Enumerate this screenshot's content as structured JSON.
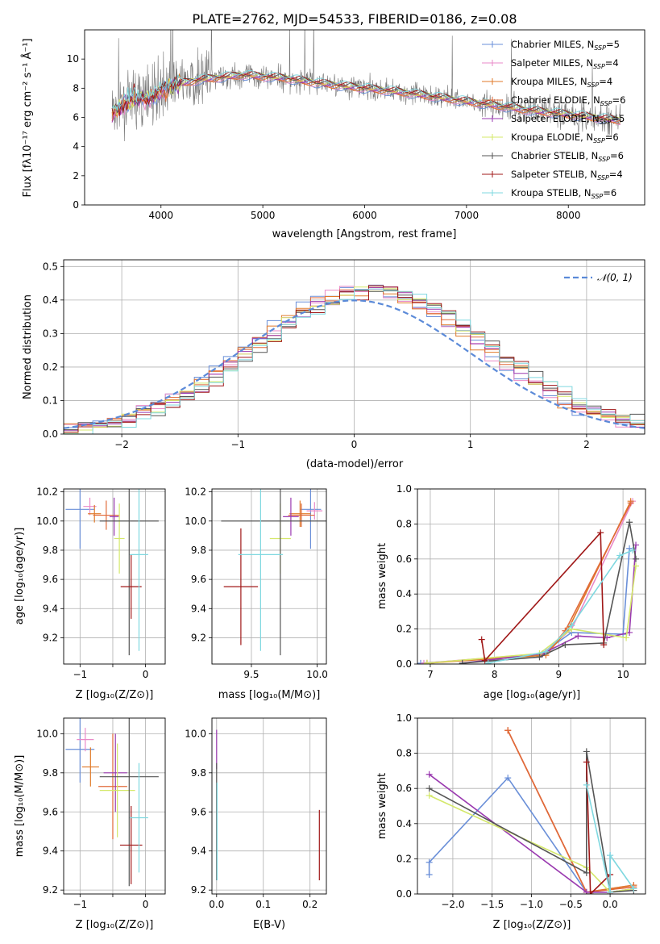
{
  "colors": {
    "chabrier_miles": "#6a8fd8",
    "salpeter_miles": "#e98ac8",
    "kroupa_miles": "#e07a2a",
    "chabrier_elodie": "#e06a3a",
    "salpeter_elodie": "#9a3ab0",
    "kroupa_elodie": "#d4e86a",
    "chabrier_stelib": "#555555",
    "salpeter_stelib": "#a01818",
    "kroupa_stelib": "#7fd8e0",
    "normal_curve": "#5b8ad8"
  },
  "chart_data": [
    {
      "id": "spectrum",
      "type": "line",
      "title": "PLATE=2762, MJD=54533, FIBERID=0186, z=0.08",
      "xlabel": "wavelength [Angstrom, rest frame]",
      "ylabel": "Flux [fλ10⁻¹⁷ erg cm⁻² s⁻¹ Å⁻¹]",
      "xlim": [
        3250,
        8750
      ],
      "ylim": [
        0,
        12
      ],
      "xticks": [
        4000,
        5000,
        6000,
        7000,
        8000
      ],
      "yticks": [
        0,
        2,
        4,
        6,
        8,
        10
      ],
      "legend": "top-right",
      "series": [
        {
          "name": "Chabrier MILES, N_SSP=5",
          "key": "chabrier_miles"
        },
        {
          "name": "Salpeter MILES, N_SSP=4",
          "key": "salpeter_miles"
        },
        {
          "name": "Kroupa MILES, N_SSP=4",
          "key": "kroupa_miles"
        },
        {
          "name": "Chabrier ELODIE, N_SSP=6",
          "key": "chabrier_elodie"
        },
        {
          "name": "Salpeter ELODIE, N_SSP=5",
          "key": "salpeter_elodie"
        },
        {
          "name": "Kroupa ELODIE, N_SSP=6",
          "key": "kroupa_elodie"
        },
        {
          "name": "Chabrier STELIB, N_SSP=6",
          "key": "chabrier_stelib"
        },
        {
          "name": "Salpeter STELIB, N_SSP=4",
          "key": "salpeter_stelib"
        },
        {
          "name": "Kroupa STELIB, N_SSP=6",
          "key": "kroupa_stelib"
        }
      ],
      "continuum": [
        [
          3500,
          6.2
        ],
        [
          3700,
          7.2
        ],
        [
          3900,
          7.4
        ],
        [
          4100,
          8.2
        ],
        [
          4400,
          8.6
        ],
        [
          4800,
          8.9
        ],
        [
          5200,
          8.7
        ],
        [
          5600,
          8.3
        ],
        [
          6000,
          8.0
        ],
        [
          6400,
          7.7
        ],
        [
          6800,
          7.3
        ],
        [
          7200,
          6.9
        ],
        [
          7600,
          6.5
        ],
        [
          8000,
          6.2
        ],
        [
          8500,
          5.8
        ]
      ]
    },
    {
      "id": "residuals",
      "type": "histogram",
      "xlabel": "(data-model)/error",
      "ylabel": "Normed distribution",
      "xlim": [
        -2.5,
        2.5
      ],
      "ylim": [
        0,
        0.52
      ],
      "xticks": [
        -2,
        -1,
        0,
        1,
        2
      ],
      "yticks": [
        0.0,
        0.1,
        0.2,
        0.3,
        0.4,
        0.5
      ],
      "legend": "top-right",
      "curve_label": "𝒩(0, 1)",
      "bins": [
        -2.5,
        2.5,
        40
      ]
    },
    {
      "id": "age_vs_Z",
      "type": "errorbar",
      "xlabel": "Z [log₁₀(Z/Z⊙)]",
      "ylabel": "age  [log₁₀(age/yr)]",
      "xlim": [
        -1.25,
        0.3
      ],
      "ylim": [
        9.02,
        10.22
      ],
      "xticks": [
        -1,
        -0.5,
        0
      ],
      "xticklabels": [
        "−1",
        "",
        "0"
      ],
      "yticks": [
        9.2,
        9.4,
        9.6,
        9.8,
        10.0,
        10.2
      ],
      "points": [
        {
          "key": "chabrier_miles",
          "x": -1.0,
          "y": 10.08,
          "xerr": 0.22,
          "yerr": 0.27
        },
        {
          "key": "salpeter_miles",
          "x": -0.85,
          "y": 10.1,
          "xerr": 0.1,
          "yerr": 0.06
        },
        {
          "key": "kroupa_miles",
          "x": -0.78,
          "y": 10.05,
          "xerr": 0.1,
          "yerr": 0.06
        },
        {
          "key": "chabrier_elodie",
          "x": -0.6,
          "y": 10.04,
          "xerr": 0.2,
          "yerr": 0.1
        },
        {
          "key": "salpeter_elodie",
          "x": -0.48,
          "y": 10.03,
          "xerr": 0.07,
          "yerr": 0.13
        },
        {
          "key": "kroupa_elodie",
          "x": -0.4,
          "y": 9.88,
          "xerr": 0.08,
          "yerr": 0.24
        },
        {
          "key": "chabrier_stelib",
          "x": -0.25,
          "y": 10.0,
          "xerr": 0.45,
          "yerr": 0.92
        },
        {
          "key": "salpeter_stelib",
          "x": -0.22,
          "y": 9.55,
          "xerr": 0.16,
          "yerr": 0.22
        },
        {
          "key": "kroupa_stelib",
          "x": -0.1,
          "y": 9.77,
          "xerr": 0.14,
          "yerr": 0.66
        }
      ]
    },
    {
      "id": "age_vs_mass",
      "type": "errorbar",
      "xlabel": "mass [log₁₀(M/M⊙)]",
      "xlim": [
        9.2,
        10.07
      ],
      "ylim": [
        9.02,
        10.22
      ],
      "xticks": [
        9.5,
        10.0
      ],
      "xticklabels": [
        "9.5",
        "10.0"
      ],
      "yticks": [
        9.2,
        9.4,
        9.6,
        9.8,
        10.0,
        10.2
      ],
      "points": [
        {
          "key": "chabrier_miles",
          "x": 9.95,
          "y": 10.08,
          "xerr": 0.08,
          "yerr": 0.27
        },
        {
          "key": "salpeter_miles",
          "x": 9.98,
          "y": 10.07,
          "xerr": 0.06,
          "yerr": 0.06
        },
        {
          "key": "kroupa_miles",
          "x": 9.87,
          "y": 10.05,
          "xerr": 0.08,
          "yerr": 0.09
        },
        {
          "key": "chabrier_elodie",
          "x": 9.88,
          "y": 10.04,
          "xerr": 0.1,
          "yerr": 0.08
        },
        {
          "key": "salpeter_elodie",
          "x": 9.8,
          "y": 10.03,
          "xerr": 0.06,
          "yerr": 0.13
        },
        {
          "key": "kroupa_elodie",
          "x": 9.72,
          "y": 9.88,
          "xerr": 0.08,
          "yerr": 0.24
        },
        {
          "key": "chabrier_stelib",
          "x": 9.72,
          "y": 10.0,
          "xerr": 0.45,
          "yerr": 0.92
        },
        {
          "key": "salpeter_stelib",
          "x": 9.42,
          "y": 9.55,
          "xerr": 0.13,
          "yerr": 0.4
        },
        {
          "key": "kroupa_stelib",
          "x": 9.57,
          "y": 9.77,
          "xerr": 0.17,
          "yerr": 0.66
        }
      ]
    },
    {
      "id": "mass_weight_vs_age",
      "type": "line",
      "xlabel": "age  [log₁₀(age/yr)]",
      "ylabel": "mass weight",
      "xlim": [
        6.8,
        10.35
      ],
      "ylim": [
        0,
        1.0
      ],
      "xticks": [
        7,
        8,
        9,
        10
      ],
      "yticks": [
        0.0,
        0.2,
        0.4,
        0.6,
        0.8,
        1.0
      ],
      "series": [
        {
          "key": "chabrier_miles",
          "x": [
            6.85,
            8.7,
            9.2,
            10.0,
            10.1
          ],
          "y": [
            0.005,
            0.05,
            0.18,
            0.17,
            0.66
          ]
        },
        {
          "key": "salpeter_miles",
          "x": [
            6.9,
            8.75,
            9.2,
            10.15
          ],
          "y": [
            0.005,
            0.06,
            0.2,
            0.93
          ]
        },
        {
          "key": "kroupa_miles",
          "x": [
            6.95,
            8.8,
            9.15,
            10.12
          ],
          "y": [
            0.005,
            0.05,
            0.2,
            0.93
          ]
        },
        {
          "key": "chabrier_elodie",
          "x": [
            6.95,
            8.8,
            9.1,
            10.12
          ],
          "y": [
            0.005,
            0.06,
            0.19,
            0.92
          ]
        },
        {
          "key": "salpeter_elodie",
          "x": [
            7.5,
            8.75,
            9.3,
            9.75,
            10.1,
            10.2
          ],
          "y": [
            0.005,
            0.06,
            0.16,
            0.15,
            0.18,
            0.68
          ]
        },
        {
          "key": "kroupa_elodie",
          "x": [
            6.95,
            8.7,
            9.2,
            10.05,
            10.2
          ],
          "y": [
            0.005,
            0.06,
            0.2,
            0.15,
            0.56
          ]
        },
        {
          "key": "chabrier_stelib",
          "x": [
            7.5,
            8.7,
            9.1,
            9.7,
            10.1,
            10.2
          ],
          "y": [
            0.005,
            0.04,
            0.11,
            0.12,
            0.81,
            0.6
          ]
        },
        {
          "key": "salpeter_stelib",
          "x": [
            7.8,
            7.85,
            9.65,
            9.7
          ],
          "y": [
            0.14,
            0.02,
            0.75,
            0.11
          ]
        },
        {
          "key": "kroupa_stelib",
          "x": [
            7.9,
            8.8,
            9.2,
            9.95,
            10.15
          ],
          "y": [
            0.005,
            0.07,
            0.22,
            0.62,
            0.65
          ]
        }
      ]
    },
    {
      "id": "mass_vs_Z",
      "type": "errorbar",
      "xlabel": "Z [log₁₀(Z/Z⊙)]",
      "ylabel": "mass [log₁₀(M/M⊙)]",
      "xlim": [
        -1.25,
        0.3
      ],
      "ylim": [
        9.18,
        10.08
      ],
      "xticks": [
        -1,
        -0.5,
        0
      ],
      "xticklabels": [
        "−1",
        "",
        "0"
      ],
      "yticks": [
        9.2,
        9.4,
        9.6,
        9.8,
        10.0
      ],
      "points": [
        {
          "key": "chabrier_miles",
          "x": -1.0,
          "y": 9.92,
          "xerr": 0.22,
          "yerr": 0.17
        },
        {
          "key": "salpeter_miles",
          "x": -0.92,
          "y": 9.97,
          "xerr": 0.13,
          "yerr": 0.06
        },
        {
          "key": "kroupa_miles",
          "x": -0.84,
          "y": 9.83,
          "xerr": 0.13,
          "yerr": 0.1
        },
        {
          "key": "chabrier_elodie",
          "x": -0.5,
          "y": 9.73,
          "xerr": 0.22,
          "yerr": 0.27
        },
        {
          "key": "salpeter_elodie",
          "x": -0.46,
          "y": 9.8,
          "xerr": 0.18,
          "yerr": 0.2
        },
        {
          "key": "kroupa_elodie",
          "x": -0.43,
          "y": 9.71,
          "xerr": 0.27,
          "yerr": 0.24
        },
        {
          "key": "chabrier_stelib",
          "x": -0.25,
          "y": 9.78,
          "xerr": 0.45,
          "yerr": 0.56
        },
        {
          "key": "salpeter_stelib",
          "x": -0.22,
          "y": 9.43,
          "xerr": 0.17,
          "yerr": 0.2
        },
        {
          "key": "kroupa_stelib",
          "x": -0.1,
          "y": 9.57,
          "xerr": 0.14,
          "yerr": 0.28
        }
      ]
    },
    {
      "id": "mass_vs_ebv",
      "type": "errorbar",
      "xlabel": "E(B-V)",
      "xlim": [
        -0.01,
        0.235
      ],
      "ylim": [
        9.18,
        10.08
      ],
      "xticks": [
        0.0,
        0.1,
        0.2
      ],
      "xticklabels": [
        "0.0",
        "0.1",
        "0.2"
      ],
      "yticks": [
        9.2,
        9.4,
        9.6,
        9.8,
        10.0
      ],
      "points": [
        {
          "key": "salpeter_elodie",
          "x": 0.0,
          "y": 9.92,
          "xerr": 0.0,
          "yerr": 0.1
        },
        {
          "key": "chabrier_stelib",
          "x": 0.0,
          "y": 9.55,
          "xerr": 0.0,
          "yerr": 0.3
        },
        {
          "key": "kroupa_stelib",
          "x": 0.001,
          "y": 9.5,
          "xerr": 0.0,
          "yerr": 0.25
        },
        {
          "key": "salpeter_stelib",
          "x": 0.22,
          "y": 9.43,
          "xerr": 0.0,
          "yerr": 0.18
        }
      ]
    },
    {
      "id": "mass_weight_vs_Z",
      "type": "line",
      "xlabel": "Z [log₁₀(Z/Z⊙)]",
      "ylabel": "mass weight",
      "xlim": [
        -2.45,
        0.45
      ],
      "ylim": [
        0,
        1.0
      ],
      "xticks": [
        -2.0,
        -1.5,
        -1.0,
        -0.5,
        0.0
      ],
      "xticklabels": [
        "−2.0",
        "−1.5",
        "−1.0",
        "−0.5",
        "0.0"
      ],
      "yticks": [
        0.0,
        0.2,
        0.4,
        0.6,
        0.8,
        1.0
      ],
      "series": [
        {
          "key": "chabrier_miles",
          "x": [
            -2.3,
            -2.3,
            -1.3,
            -0.3,
            0.0,
            0.0
          ],
          "y": [
            0.11,
            0.18,
            0.66,
            0.01,
            0.01,
            0.22
          ]
        },
        {
          "key": "salpeter_miles",
          "x": [
            -1.3,
            -0.3,
            0.3
          ],
          "y": [
            0.93,
            0.01,
            0.05
          ]
        },
        {
          "key": "kroupa_miles",
          "x": [
            -1.3,
            -0.3,
            0.3
          ],
          "y": [
            0.93,
            0.01,
            0.05
          ]
        },
        {
          "key": "chabrier_elodie",
          "x": [
            -1.3,
            -0.3,
            0.3
          ],
          "y": [
            0.93,
            0.01,
            0.04
          ]
        },
        {
          "key": "salpeter_elodie",
          "x": [
            -2.3,
            -0.3,
            0.0,
            0.3
          ],
          "y": [
            0.68,
            0.01,
            0.01,
            0.03
          ]
        },
        {
          "key": "kroupa_elodie",
          "x": [
            -2.3,
            -0.3,
            0.0,
            0.3
          ],
          "y": [
            0.56,
            0.15,
            0.01,
            0.03
          ]
        },
        {
          "key": "chabrier_stelib",
          "x": [
            -2.3,
            -0.3,
            -0.3,
            0.0,
            0.3
          ],
          "y": [
            0.6,
            0.12,
            0.81,
            0.01,
            0.02
          ]
        },
        {
          "key": "salpeter_stelib",
          "x": [
            -0.3,
            -0.25,
            0.0,
            0.0
          ],
          "y": [
            0.75,
            0.0,
            0.11,
            0.0
          ]
        },
        {
          "key": "kroupa_stelib",
          "x": [
            -0.3,
            0.0,
            0.0,
            0.3
          ],
          "y": [
            0.62,
            0.01,
            0.22,
            0.03
          ]
        }
      ]
    }
  ]
}
